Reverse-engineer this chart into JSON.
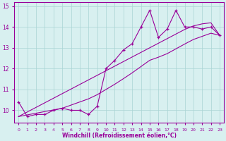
{
  "xlabel": "Windchill (Refroidissement éolien,°C)",
  "x": [
    0,
    1,
    2,
    3,
    4,
    5,
    6,
    7,
    8,
    9,
    10,
    11,
    12,
    13,
    14,
    15,
    16,
    17,
    18,
    19,
    20,
    21,
    22,
    23
  ],
  "y_data": [
    10.4,
    9.7,
    9.8,
    9.8,
    10.0,
    10.1,
    10.0,
    10.0,
    9.8,
    10.2,
    12.0,
    12.4,
    12.9,
    13.2,
    14.0,
    14.8,
    13.5,
    13.9,
    14.8,
    14.0,
    14.0,
    13.9,
    14.0,
    13.6
  ],
  "y_line_upper": [
    9.7,
    9.92,
    10.14,
    10.36,
    10.58,
    10.8,
    11.02,
    11.24,
    11.46,
    11.68,
    11.9,
    12.12,
    12.34,
    12.56,
    12.78,
    13.0,
    13.22,
    13.44,
    13.66,
    13.88,
    14.05,
    14.15,
    14.2,
    13.6
  ],
  "y_line_lower": [
    9.7,
    9.78,
    9.86,
    9.94,
    10.02,
    10.1,
    10.25,
    10.4,
    10.55,
    10.75,
    11.0,
    11.25,
    11.52,
    11.8,
    12.1,
    12.4,
    12.55,
    12.72,
    12.95,
    13.18,
    13.4,
    13.55,
    13.7,
    13.6
  ],
  "line_color": "#990099",
  "bg_color": "#d8f0f0",
  "grid_color": "#aad4d4",
  "ylim": [
    9.4,
    15.2
  ],
  "xlim": [
    -0.5,
    23.5
  ],
  "yticks": [
    10,
    11,
    12,
    13,
    14,
    15
  ],
  "xticks": [
    0,
    1,
    2,
    3,
    4,
    5,
    6,
    7,
    8,
    9,
    10,
    11,
    12,
    13,
    14,
    15,
    16,
    17,
    18,
    19,
    20,
    21,
    22,
    23
  ]
}
